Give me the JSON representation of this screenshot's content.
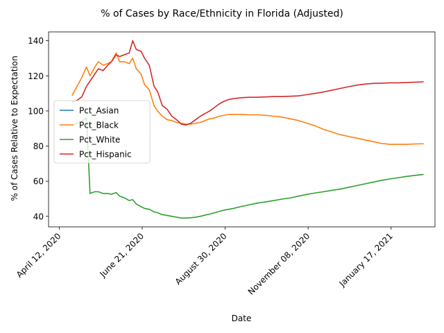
{
  "chart_data": {
    "type": "line",
    "title": "% of Cases by Race/Ethnicity in Florida (Adjusted)",
    "xlabel": "Date",
    "ylabel": "% of Cases Relative to Expectation",
    "x_tick_labels": [
      "April 12, 2020",
      "June 21, 2020",
      "August 30, 2020",
      "November 08, 2020",
      "January 17, 2021"
    ],
    "y_ticks": [
      40,
      60,
      80,
      100,
      120,
      140
    ],
    "ylim": [
      34,
      145
    ],
    "xlim": [
      "2020-04-03",
      "2021-02-23"
    ],
    "grid": false,
    "legend_position": "center-left",
    "series": [
      {
        "name": "Pct_Asian",
        "color": "#1f77b4",
        "points": []
      },
      {
        "name": "Pct_Black",
        "color": "#ff7f0e",
        "points": [
          [
            "2020-04-23",
            109
          ],
          [
            "2020-04-27",
            114
          ],
          [
            "2020-05-01",
            119
          ],
          [
            "2020-05-05",
            125
          ],
          [
            "2020-05-08",
            120
          ],
          [
            "2020-05-12",
            125
          ],
          [
            "2020-05-15",
            128
          ],
          [
            "2020-05-19",
            126
          ],
          [
            "2020-05-23",
            127
          ],
          [
            "2020-05-26",
            128
          ],
          [
            "2020-05-30",
            133
          ],
          [
            "2020-06-02",
            128
          ],
          [
            "2020-06-06",
            128
          ],
          [
            "2020-06-10",
            127
          ],
          [
            "2020-06-13",
            130
          ],
          [
            "2020-06-16",
            124
          ],
          [
            "2020-06-20",
            121
          ],
          [
            "2020-06-23",
            115
          ],
          [
            "2020-06-27",
            112
          ],
          [
            "2020-07-01",
            103
          ],
          [
            "2020-07-04",
            100
          ],
          [
            "2020-07-08",
            97
          ],
          [
            "2020-07-12",
            95
          ],
          [
            "2020-07-16",
            94.5
          ],
          [
            "2020-07-20",
            93.5
          ],
          [
            "2020-07-24",
            93
          ],
          [
            "2020-07-28",
            92.5
          ],
          [
            "2020-08-01",
            92.5
          ],
          [
            "2020-08-05",
            93
          ],
          [
            "2020-08-09",
            93.5
          ],
          [
            "2020-08-13",
            94.5
          ],
          [
            "2020-08-17",
            95.5
          ],
          [
            "2020-08-21",
            96
          ],
          [
            "2020-08-25",
            97
          ],
          [
            "2020-08-29",
            97.5
          ],
          [
            "2020-09-02",
            98
          ],
          [
            "2020-09-06",
            98
          ],
          [
            "2020-09-12",
            98
          ],
          [
            "2020-09-19",
            97.8
          ],
          [
            "2020-09-26",
            97.8
          ],
          [
            "2020-10-03",
            97.5
          ],
          [
            "2020-10-10",
            97
          ],
          [
            "2020-10-17",
            96.5
          ],
          [
            "2020-10-24",
            95.5
          ],
          [
            "2020-10-31",
            94.5
          ],
          [
            "2020-11-07",
            93
          ],
          [
            "2020-11-14",
            91.5
          ],
          [
            "2020-11-21",
            89.5
          ],
          [
            "2020-11-28",
            88
          ],
          [
            "2020-12-05",
            86.5
          ],
          [
            "2020-12-12",
            85.5
          ],
          [
            "2020-12-19",
            84.5
          ],
          [
            "2020-12-26",
            83.5
          ],
          [
            "2021-01-02",
            82.5
          ],
          [
            "2021-01-09",
            81.5
          ],
          [
            "2021-01-16",
            81
          ],
          [
            "2021-01-23",
            81
          ],
          [
            "2021-01-30",
            81
          ],
          [
            "2021-02-06",
            81.2
          ],
          [
            "2021-02-13",
            81.3
          ]
        ]
      },
      {
        "name": "Pct_White",
        "color": "#2ca02c",
        "points": [
          [
            "2020-04-23",
            92
          ],
          [
            "2020-04-27",
            93
          ],
          [
            "2020-05-01",
            94
          ],
          [
            "2020-05-05",
            96
          ],
          [
            "2020-05-08",
            53
          ],
          [
            "2020-05-12",
            54
          ],
          [
            "2020-05-15",
            54
          ],
          [
            "2020-05-19",
            53
          ],
          [
            "2020-05-23",
            53
          ],
          [
            "2020-05-26",
            52.5
          ],
          [
            "2020-05-30",
            53.5
          ],
          [
            "2020-06-02",
            51.5
          ],
          [
            "2020-06-06",
            50.5
          ],
          [
            "2020-06-10",
            49
          ],
          [
            "2020-06-13",
            49.5
          ],
          [
            "2020-06-16",
            47
          ],
          [
            "2020-06-20",
            45.5
          ],
          [
            "2020-06-23",
            44.5
          ],
          [
            "2020-06-27",
            44
          ],
          [
            "2020-07-01",
            42.5
          ],
          [
            "2020-07-04",
            42
          ],
          [
            "2020-07-08",
            41
          ],
          [
            "2020-07-12",
            40.5
          ],
          [
            "2020-07-16",
            40
          ],
          [
            "2020-07-20",
            39.5
          ],
          [
            "2020-07-24",
            39
          ],
          [
            "2020-07-28",
            39
          ],
          [
            "2020-08-01",
            39.2
          ],
          [
            "2020-08-05",
            39.5
          ],
          [
            "2020-08-09",
            40
          ],
          [
            "2020-08-13",
            40.7
          ],
          [
            "2020-08-17",
            41.3
          ],
          [
            "2020-08-21",
            42
          ],
          [
            "2020-08-25",
            42.8
          ],
          [
            "2020-08-29",
            43.5
          ],
          [
            "2020-09-02",
            44
          ],
          [
            "2020-09-06",
            44.5
          ],
          [
            "2020-09-12",
            45.5
          ],
          [
            "2020-09-19",
            46.5
          ],
          [
            "2020-09-26",
            47.5
          ],
          [
            "2020-10-03",
            48.2
          ],
          [
            "2020-10-10",
            49
          ],
          [
            "2020-10-17",
            49.8
          ],
          [
            "2020-10-24",
            50.5
          ],
          [
            "2020-10-31",
            51.5
          ],
          [
            "2020-11-07",
            52.5
          ],
          [
            "2020-11-14",
            53.3
          ],
          [
            "2020-11-21",
            54
          ],
          [
            "2020-11-28",
            54.8
          ],
          [
            "2020-12-05",
            55.5
          ],
          [
            "2020-12-12",
            56.5
          ],
          [
            "2020-12-19",
            57.5
          ],
          [
            "2020-12-26",
            58.5
          ],
          [
            "2021-01-02",
            59.5
          ],
          [
            "2021-01-09",
            60.5
          ],
          [
            "2021-01-16",
            61.3
          ],
          [
            "2021-01-23",
            62
          ],
          [
            "2021-01-30",
            62.7
          ],
          [
            "2021-02-06",
            63.3
          ],
          [
            "2021-02-13",
            63.8
          ]
        ]
      },
      {
        "name": "Pct_Hispanic",
        "color": "#d62728",
        "points": [
          [
            "2020-04-23",
            105
          ],
          [
            "2020-04-27",
            106
          ],
          [
            "2020-05-01",
            108
          ],
          [
            "2020-05-05",
            114
          ],
          [
            "2020-05-08",
            117
          ],
          [
            "2020-05-12",
            121
          ],
          [
            "2020-05-15",
            124
          ],
          [
            "2020-05-19",
            123
          ],
          [
            "2020-05-23",
            126
          ],
          [
            "2020-05-26",
            128
          ],
          [
            "2020-05-30",
            132
          ],
          [
            "2020-06-02",
            131
          ],
          [
            "2020-06-06",
            132
          ],
          [
            "2020-06-10",
            133
          ],
          [
            "2020-06-13",
            140
          ],
          [
            "2020-06-16",
            135
          ],
          [
            "2020-06-20",
            134
          ],
          [
            "2020-06-23",
            130
          ],
          [
            "2020-06-27",
            126
          ],
          [
            "2020-07-01",
            114
          ],
          [
            "2020-07-04",
            111
          ],
          [
            "2020-07-08",
            103
          ],
          [
            "2020-07-12",
            101
          ],
          [
            "2020-07-16",
            97
          ],
          [
            "2020-07-20",
            95
          ],
          [
            "2020-07-24",
            92.5
          ],
          [
            "2020-07-28",
            92
          ],
          [
            "2020-08-01",
            93
          ],
          [
            "2020-08-05",
            95
          ],
          [
            "2020-08-09",
            97
          ],
          [
            "2020-08-13",
            98.5
          ],
          [
            "2020-08-17",
            100
          ],
          [
            "2020-08-21",
            102
          ],
          [
            "2020-08-25",
            104
          ],
          [
            "2020-08-29",
            105.5
          ],
          [
            "2020-09-02",
            106.5
          ],
          [
            "2020-09-06",
            107
          ],
          [
            "2020-09-12",
            107.5
          ],
          [
            "2020-09-19",
            107.8
          ],
          [
            "2020-09-26",
            107.8
          ],
          [
            "2020-10-03",
            108
          ],
          [
            "2020-10-10",
            108.2
          ],
          [
            "2020-10-17",
            108.2
          ],
          [
            "2020-10-24",
            108.4
          ],
          [
            "2020-10-31",
            108.6
          ],
          [
            "2020-11-07",
            109.3
          ],
          [
            "2020-11-14",
            110
          ],
          [
            "2020-11-21",
            110.8
          ],
          [
            "2020-11-28",
            111.8
          ],
          [
            "2020-12-05",
            112.8
          ],
          [
            "2020-12-12",
            113.8
          ],
          [
            "2020-12-19",
            114.7
          ],
          [
            "2020-12-26",
            115.3
          ],
          [
            "2021-01-02",
            115.7
          ],
          [
            "2021-01-09",
            115.8
          ],
          [
            "2021-01-16",
            116
          ],
          [
            "2021-01-23",
            116
          ],
          [
            "2021-01-30",
            116.2
          ],
          [
            "2021-02-06",
            116.4
          ],
          [
            "2021-02-13",
            116.6
          ]
        ]
      }
    ]
  }
}
